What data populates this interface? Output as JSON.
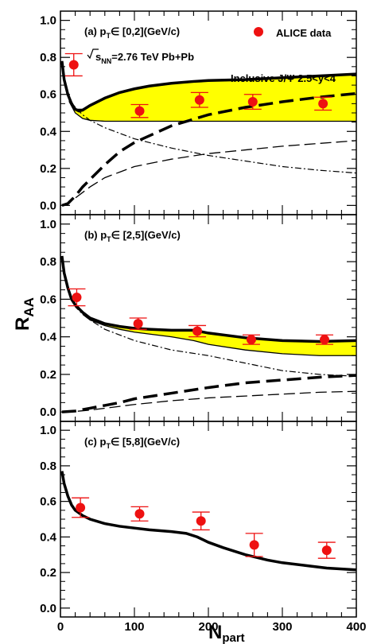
{
  "figure": {
    "y_axis_title": "R",
    "y_axis_subscript": "AA",
    "x_axis_title": "N",
    "x_axis_subscript": "part",
    "x_ticks": [
      "0",
      "100",
      "200",
      "300",
      "400"
    ],
    "y_ticks": [
      "0.0",
      "0.2",
      "0.4",
      "0.6",
      "0.8",
      "1.0"
    ]
  },
  "legend": {
    "marker_label": "ALICE data",
    "energy_pre": "s",
    "energy_sub": "NN",
    "energy_post": "=2.76 TeV Pb+Pb",
    "process_label": "Inclusive J/Ψ 2.5<y<4"
  },
  "colors": {
    "data_marker": "#ee1111",
    "band_fill": "#ffff00",
    "lines": "#000000"
  },
  "chart_data": [
    {
      "type": "line",
      "panel_label_prefix": "(a) p",
      "panel_label_sub": "T",
      "panel_label_suffix": "∈ [0,2](GeV/c)",
      "xlim": [
        0,
        400
      ],
      "ylim": [
        -0.05,
        1.05
      ],
      "data_points": [
        {
          "x": 18,
          "y": 0.76,
          "err": 0.06
        },
        {
          "x": 107,
          "y": 0.51,
          "err": 0.035
        },
        {
          "x": 188,
          "y": 0.57,
          "err": 0.04
        },
        {
          "x": 260,
          "y": 0.56,
          "err": 0.04
        },
        {
          "x": 355,
          "y": 0.55,
          "err": 0.035
        }
      ],
      "band_upper": [
        [
          12,
          0.58
        ],
        [
          20,
          0.52
        ],
        [
          30,
          0.52
        ],
        [
          40,
          0.54
        ],
        [
          60,
          0.58
        ],
        [
          80,
          0.61
        ],
        [
          100,
          0.63
        ],
        [
          120,
          0.645
        ],
        [
          150,
          0.66
        ],
        [
          180,
          0.67
        ],
        [
          200,
          0.675
        ],
        [
          250,
          0.68
        ],
        [
          300,
          0.69
        ],
        [
          350,
          0.7
        ],
        [
          400,
          0.71
        ]
      ],
      "band_lower": [
        [
          12,
          0.56
        ],
        [
          20,
          0.5
        ],
        [
          30,
          0.47
        ],
        [
          40,
          0.46
        ],
        [
          60,
          0.455
        ],
        [
          100,
          0.455
        ],
        [
          150,
          0.455
        ],
        [
          200,
          0.455
        ],
        [
          250,
          0.455
        ],
        [
          300,
          0.455
        ],
        [
          350,
          0.455
        ],
        [
          400,
          0.455
        ]
      ],
      "total_line": [
        [
          2,
          0.78
        ],
        [
          5,
          0.68
        ],
        [
          10,
          0.6
        ],
        [
          15,
          0.55
        ],
        [
          20,
          0.52
        ],
        [
          25,
          0.51
        ],
        [
          30,
          0.515
        ],
        [
          40,
          0.54
        ],
        [
          60,
          0.58
        ],
        [
          80,
          0.61
        ],
        [
          100,
          0.63
        ],
        [
          120,
          0.645
        ],
        [
          150,
          0.66
        ],
        [
          180,
          0.67
        ],
        [
          200,
          0.675
        ],
        [
          250,
          0.68
        ],
        [
          300,
          0.69
        ],
        [
          350,
          0.7
        ],
        [
          400,
          0.71
        ]
      ],
      "primordial_line": [
        [
          2,
          0.78
        ],
        [
          5,
          0.68
        ],
        [
          10,
          0.61
        ],
        [
          15,
          0.56
        ],
        [
          20,
          0.53
        ],
        [
          30,
          0.49
        ],
        [
          40,
          0.46
        ],
        [
          60,
          0.42
        ],
        [
          80,
          0.39
        ],
        [
          100,
          0.36
        ],
        [
          150,
          0.31
        ],
        [
          200,
          0.27
        ],
        [
          250,
          0.24
        ],
        [
          300,
          0.21
        ],
        [
          350,
          0.19
        ],
        [
          400,
          0.175
        ]
      ],
      "regen_thick": [
        [
          2,
          0
        ],
        [
          10,
          0.01
        ],
        [
          20,
          0.05
        ],
        [
          30,
          0.1
        ],
        [
          40,
          0.14
        ],
        [
          60,
          0.22
        ],
        [
          80,
          0.29
        ],
        [
          100,
          0.34
        ],
        [
          150,
          0.43
        ],
        [
          200,
          0.49
        ],
        [
          250,
          0.53
        ],
        [
          300,
          0.56
        ],
        [
          350,
          0.585
        ],
        [
          400,
          0.605
        ]
      ],
      "regen_thin": [
        [
          2,
          0
        ],
        [
          10,
          0.01
        ],
        [
          20,
          0.04
        ],
        [
          30,
          0.07
        ],
        [
          40,
          0.1
        ],
        [
          60,
          0.15
        ],
        [
          80,
          0.18
        ],
        [
          100,
          0.21
        ],
        [
          150,
          0.25
        ],
        [
          200,
          0.28
        ],
        [
          250,
          0.3
        ],
        [
          300,
          0.32
        ],
        [
          350,
          0.335
        ],
        [
          400,
          0.35
        ]
      ]
    },
    {
      "type": "line",
      "panel_label_prefix": "(b) p",
      "panel_label_sub": "T",
      "panel_label_suffix": "∈ [2,5](GeV/c)",
      "xlim": [
        0,
        400
      ],
      "ylim": [
        -0.05,
        1.05
      ],
      "data_points": [
        {
          "x": 22,
          "y": 0.61,
          "err": 0.045
        },
        {
          "x": 105,
          "y": 0.47,
          "err": 0.03
        },
        {
          "x": 185,
          "y": 0.43,
          "err": 0.03
        },
        {
          "x": 258,
          "y": 0.385,
          "err": 0.025
        },
        {
          "x": 357,
          "y": 0.385,
          "err": 0.025
        }
      ],
      "band_upper": [
        [
          30,
          0.52
        ],
        [
          40,
          0.5
        ],
        [
          60,
          0.47
        ],
        [
          80,
          0.455
        ],
        [
          100,
          0.445
        ],
        [
          120,
          0.44
        ],
        [
          150,
          0.435
        ],
        [
          180,
          0.435
        ],
        [
          200,
          0.42
        ],
        [
          250,
          0.395
        ],
        [
          300,
          0.38
        ],
        [
          350,
          0.375
        ],
        [
          400,
          0.38
        ]
      ],
      "band_lower": [
        [
          30,
          0.52
        ],
        [
          40,
          0.49
        ],
        [
          60,
          0.46
        ],
        [
          80,
          0.44
        ],
        [
          100,
          0.425
        ],
        [
          120,
          0.415
        ],
        [
          150,
          0.4
        ],
        [
          180,
          0.38
        ],
        [
          200,
          0.36
        ],
        [
          250,
          0.33
        ],
        [
          300,
          0.31
        ],
        [
          350,
          0.3
        ],
        [
          400,
          0.3
        ]
      ],
      "total_line": [
        [
          2,
          0.83
        ],
        [
          5,
          0.74
        ],
        [
          10,
          0.66
        ],
        [
          15,
          0.6
        ],
        [
          20,
          0.57
        ],
        [
          25,
          0.55
        ],
        [
          30,
          0.53
        ],
        [
          40,
          0.5
        ],
        [
          60,
          0.47
        ],
        [
          80,
          0.455
        ],
        [
          100,
          0.445
        ],
        [
          120,
          0.44
        ],
        [
          150,
          0.435
        ],
        [
          180,
          0.435
        ],
        [
          200,
          0.42
        ],
        [
          250,
          0.395
        ],
        [
          300,
          0.38
        ],
        [
          350,
          0.375
        ],
        [
          400,
          0.38
        ]
      ],
      "primordial_line": [
        [
          2,
          0.83
        ],
        [
          5,
          0.74
        ],
        [
          10,
          0.66
        ],
        [
          15,
          0.6
        ],
        [
          20,
          0.56
        ],
        [
          30,
          0.52
        ],
        [
          40,
          0.49
        ],
        [
          60,
          0.44
        ],
        [
          80,
          0.41
        ],
        [
          100,
          0.38
        ],
        [
          150,
          0.33
        ],
        [
          200,
          0.3
        ],
        [
          250,
          0.26
        ],
        [
          300,
          0.22
        ],
        [
          350,
          0.2
        ],
        [
          400,
          0.19
        ]
      ],
      "regen_thick": [
        [
          2,
          0
        ],
        [
          20,
          0.005
        ],
        [
          40,
          0.02
        ],
        [
          60,
          0.035
        ],
        [
          80,
          0.05
        ],
        [
          100,
          0.07
        ],
        [
          150,
          0.1
        ],
        [
          200,
          0.13
        ],
        [
          250,
          0.155
        ],
        [
          300,
          0.17
        ],
        [
          350,
          0.185
        ],
        [
          400,
          0.195
        ]
      ],
      "regen_thin": [
        [
          2,
          0
        ],
        [
          20,
          0.003
        ],
        [
          40,
          0.01
        ],
        [
          60,
          0.02
        ],
        [
          80,
          0.03
        ],
        [
          100,
          0.04
        ],
        [
          150,
          0.06
        ],
        [
          200,
          0.075
        ],
        [
          250,
          0.085
        ],
        [
          300,
          0.095
        ],
        [
          350,
          0.105
        ],
        [
          400,
          0.11
        ]
      ]
    },
    {
      "type": "line",
      "panel_label_prefix": "(c) p",
      "panel_label_sub": "T",
      "panel_label_suffix": "∈ [5,8](GeV/c)",
      "xlim": [
        0,
        400
      ],
      "ylim": [
        -0.05,
        1.05
      ],
      "data_points": [
        {
          "x": 27,
          "y": 0.565,
          "err": 0.055
        },
        {
          "x": 107,
          "y": 0.53,
          "err": 0.04
        },
        {
          "x": 190,
          "y": 0.49,
          "err": 0.05
        },
        {
          "x": 262,
          "y": 0.355,
          "err": 0.065
        },
        {
          "x": 360,
          "y": 0.325,
          "err": 0.045
        }
      ],
      "band_upper": [],
      "band_lower": [],
      "total_line": [
        [
          2,
          0.77
        ],
        [
          5,
          0.7
        ],
        [
          10,
          0.63
        ],
        [
          15,
          0.58
        ],
        [
          20,
          0.55
        ],
        [
          30,
          0.52
        ],
        [
          40,
          0.5
        ],
        [
          60,
          0.475
        ],
        [
          80,
          0.46
        ],
        [
          100,
          0.45
        ],
        [
          120,
          0.44
        ],
        [
          150,
          0.43
        ],
        [
          170,
          0.42
        ],
        [
          185,
          0.4
        ],
        [
          200,
          0.37
        ],
        [
          220,
          0.34
        ],
        [
          250,
          0.3
        ],
        [
          280,
          0.27
        ],
        [
          300,
          0.255
        ],
        [
          330,
          0.24
        ],
        [
          360,
          0.225
        ],
        [
          400,
          0.215
        ]
      ],
      "primordial_line": [],
      "regen_thick": [],
      "regen_thin": []
    }
  ]
}
